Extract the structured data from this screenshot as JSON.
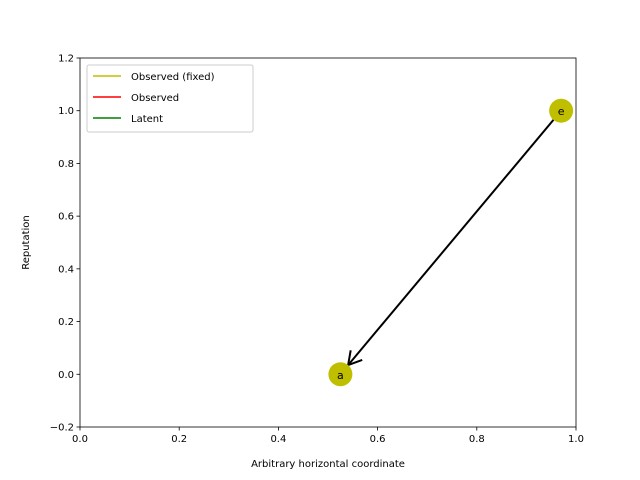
{
  "chart_data": {
    "type": "scatter",
    "title": "",
    "xlabel": "Arbitrary horizontal coordinate",
    "ylabel": "Reputation",
    "xlim": [
      0.0,
      1.0
    ],
    "ylim": [
      -0.2,
      1.2
    ],
    "x_ticks": [
      "0.0",
      "0.2",
      "0.4",
      "0.6",
      "0.8",
      "1.0"
    ],
    "y_ticks": [
      "−0.2",
      "0.0",
      "0.2",
      "0.4",
      "0.6",
      "0.8",
      "1.0",
      "1.2"
    ],
    "x_tick_values": [
      0.0,
      0.2,
      0.4,
      0.6,
      0.8,
      1.0
    ],
    "y_tick_values": [
      -0.2,
      0.0,
      0.2,
      0.4,
      0.6,
      0.8,
      1.0,
      1.2
    ],
    "grid": false,
    "legend_position": "top-left",
    "legend": [
      {
        "name": "Observed (fixed)",
        "color": "#bfbf00"
      },
      {
        "name": "Observed",
        "color": "#ff0000"
      },
      {
        "name": "Latent",
        "color": "#008000"
      }
    ],
    "nodes": [
      {
        "label": "e",
        "x": 0.97,
        "y": 1.0,
        "color": "#bfbf00"
      },
      {
        "label": "a",
        "x": 0.525,
        "y": 0.0,
        "color": "#bfbf00"
      }
    ],
    "edges": [
      {
        "from": "e",
        "to": "a",
        "color": "#000000"
      }
    ]
  }
}
